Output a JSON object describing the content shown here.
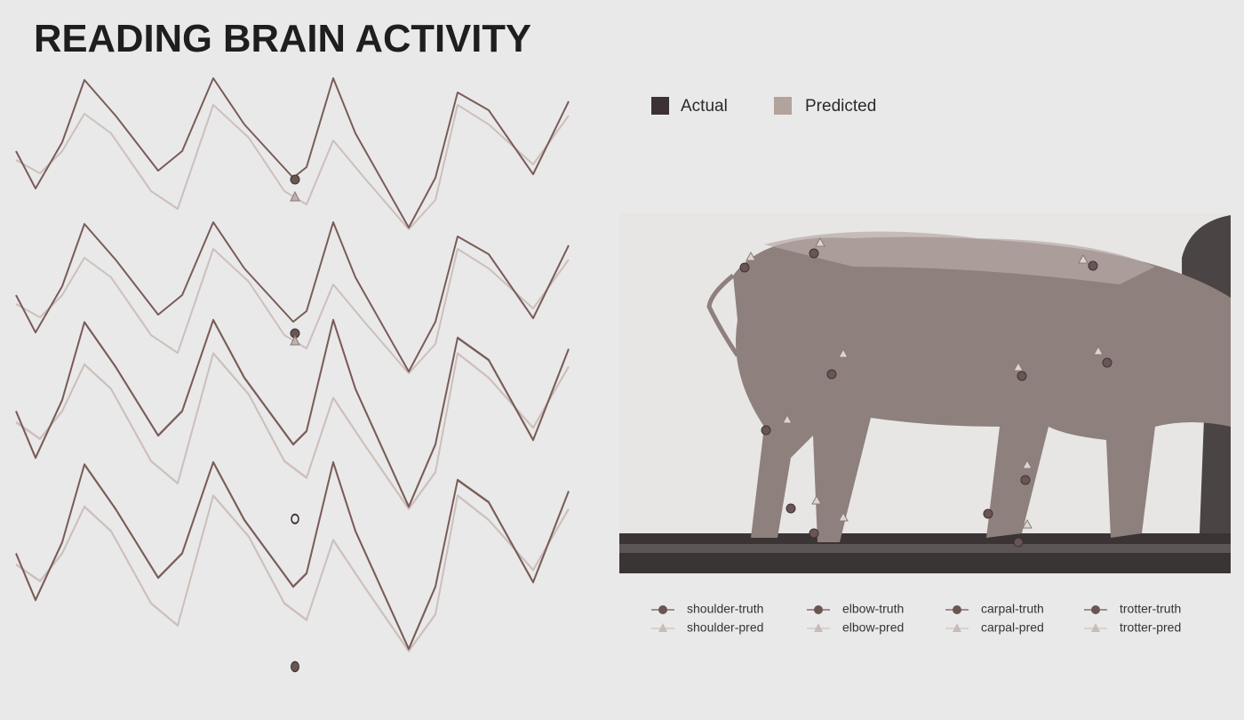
{
  "title": "READING BRAIN ACTIVITY",
  "legend": {
    "items": [
      "Actual",
      "Predicted"
    ]
  },
  "keypoint_legend": {
    "items": [
      {
        "truth": "shoulder-truth",
        "pred": "shoulder-pred"
      },
      {
        "truth": "elbow-truth",
        "pred": "elbow-pred"
      },
      {
        "truth": "carpal-truth",
        "pred": "carpal-pred"
      },
      {
        "truth": "trotter-truth",
        "pred": "trotter-pred"
      }
    ]
  }
}
